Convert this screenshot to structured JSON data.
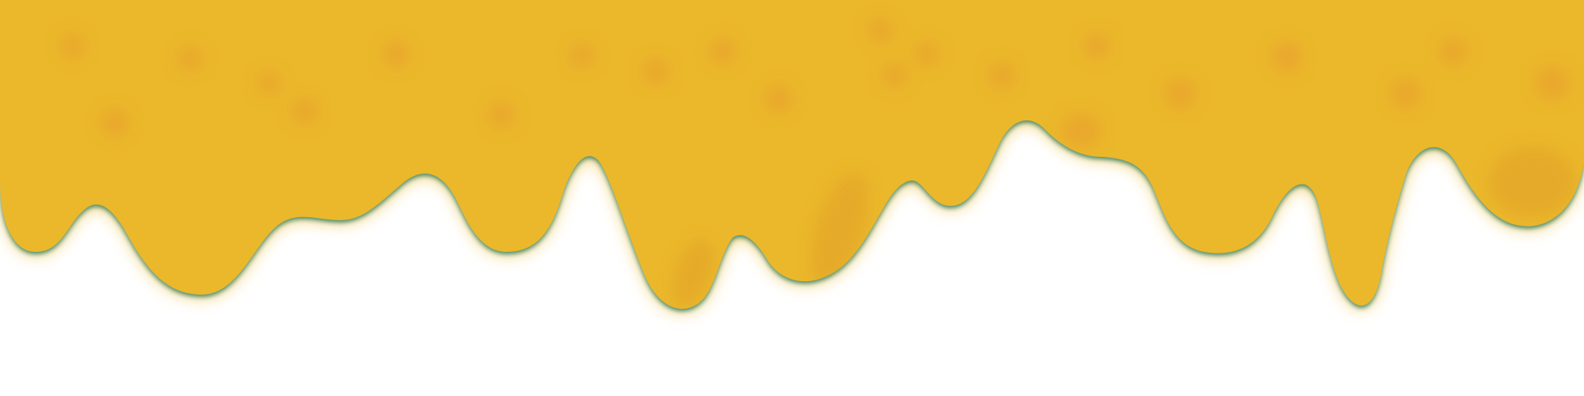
{
  "scene": {
    "subject": "dripping-yellow-liquid",
    "colors": {
      "background": "#ffffff",
      "liquid": "#ebb82b",
      "liquid_dark": "#e4a827",
      "spot": "#e8a32f",
      "edge_shadow": "#2f7d62",
      "glow": "#f3d37a"
    }
  }
}
